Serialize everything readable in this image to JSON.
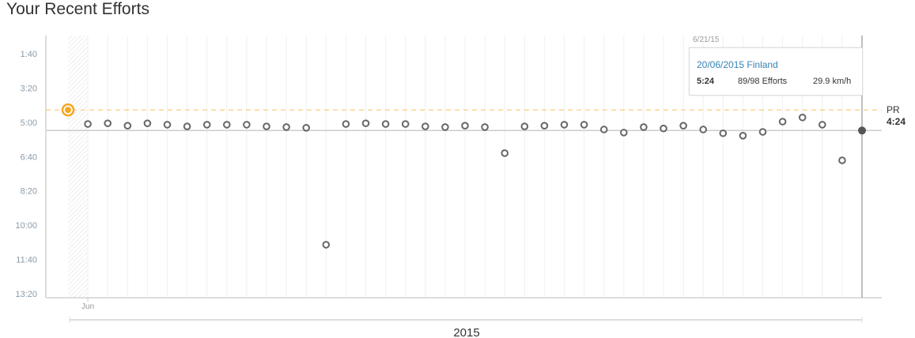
{
  "title": "Your Recent Efforts",
  "chart_data": {
    "type": "scatter",
    "ylabel": "",
    "y_ticks": [
      "1:40",
      "3:20",
      "5:00",
      "6:40",
      "8:20",
      "10:00",
      "11:40",
      "13:20"
    ],
    "y_range_seconds": [
      100,
      800
    ],
    "y_inverted": false,
    "x_tick_labels": [
      "Jun"
    ],
    "x_group_label": "2015",
    "pr": {
      "label": "PR",
      "value": "4:24",
      "seconds": 264,
      "color": "#f5a623"
    },
    "efforts_seconds": [
      264,
      305,
      303,
      310,
      303,
      307,
      312,
      307,
      307,
      307,
      312,
      314,
      316,
      657,
      305,
      303,
      305,
      305,
      312,
      314,
      310,
      314,
      390,
      312,
      310,
      307,
      307,
      321,
      330,
      314,
      318,
      310,
      321,
      332,
      339,
      328,
      298,
      286,
      307,
      411,
      324
    ],
    "pr_index": 0,
    "selected_index": 40,
    "colors": {
      "pr": "#f5a623",
      "point": "#666666",
      "selected": "#555555",
      "grid": "#f0f0f0"
    }
  },
  "tooltip": {
    "date_label": "6/21/15",
    "title": "20/06/2015 Finland",
    "time": "5:24",
    "efforts": "89/98 Efforts",
    "speed": "29.9 km/h"
  }
}
